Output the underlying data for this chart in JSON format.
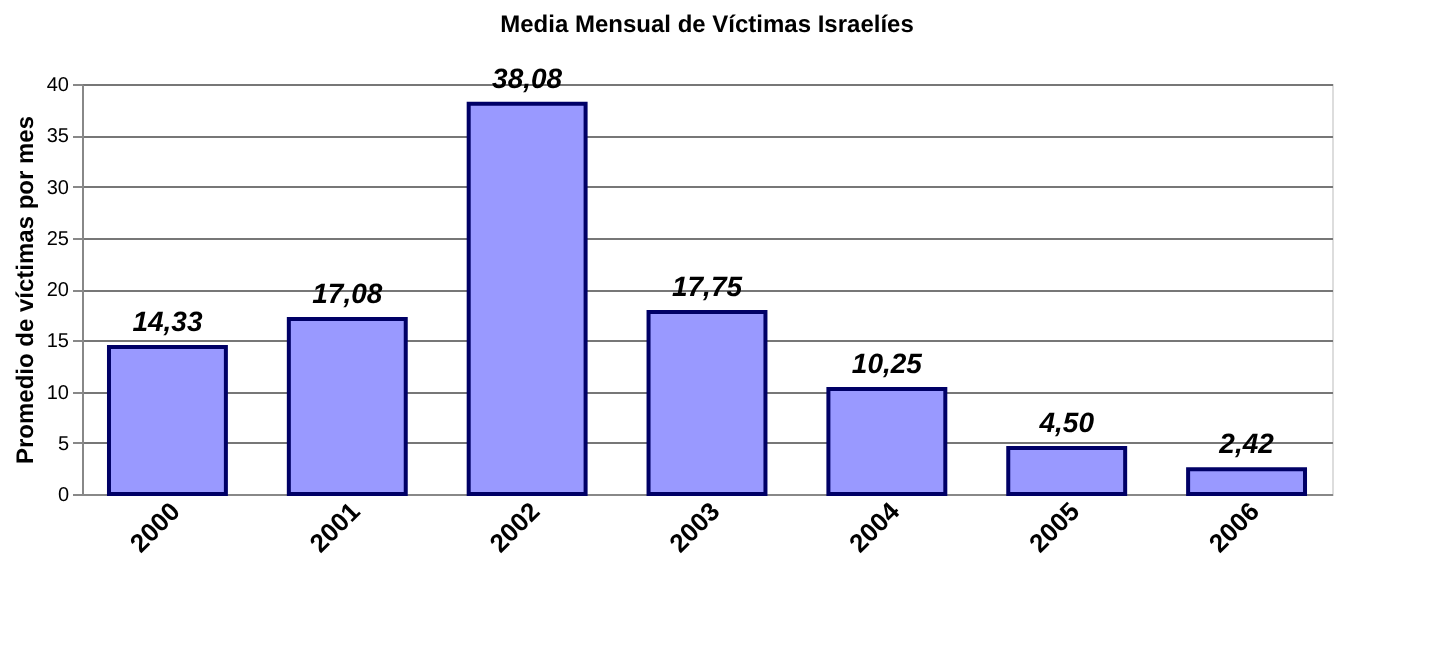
{
  "chart_data": {
    "type": "bar",
    "title": "Media Mensual de Víctimas Israelíes",
    "ylabel": "Promedio de víctimas por mes",
    "categories": [
      "2000",
      "2001",
      "2002",
      "2003",
      "2004",
      "2005",
      "2006"
    ],
    "series": [
      {
        "color": "#9999ff",
        "values": [
          14.33,
          17.08,
          38.08,
          17.75,
          10.25,
          4.5,
          2.42
        ]
      }
    ],
    "value_labels": [
      "14,33",
      "17,08",
      "38,08",
      "17,75",
      "10,25",
      "4,50",
      "2,42"
    ],
    "ylim": [
      0,
      40
    ],
    "yticks": [
      0,
      5,
      10,
      15,
      20,
      25,
      30,
      35,
      40
    ],
    "grid": "y"
  }
}
